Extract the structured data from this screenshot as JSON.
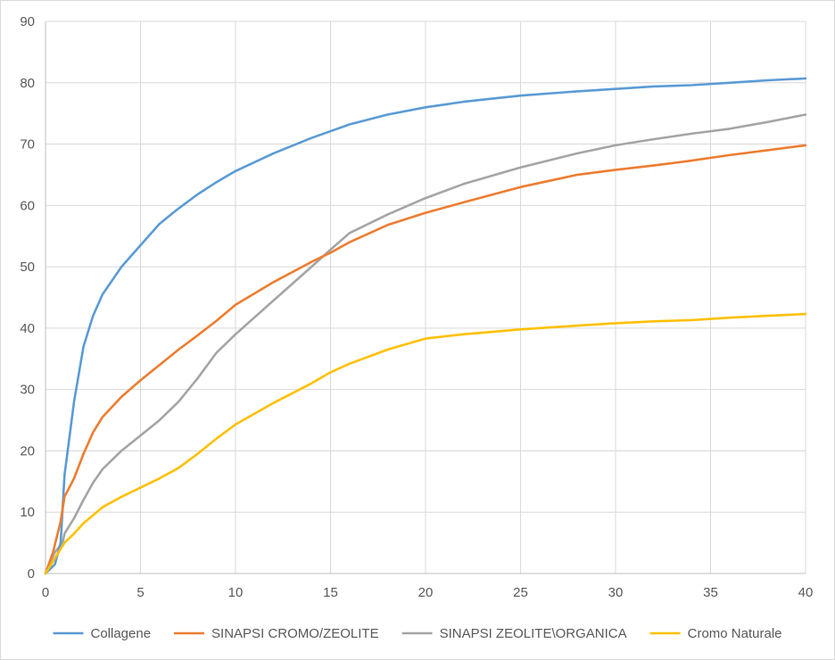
{
  "chart_data": {
    "type": "line",
    "title": "",
    "xlabel": "",
    "ylabel": "",
    "xlim": [
      0,
      40
    ],
    "ylim": [
      0,
      90
    ],
    "x_ticks": [
      0,
      5,
      10,
      15,
      20,
      25,
      30,
      35,
      40
    ],
    "y_ticks": [
      0,
      10,
      20,
      30,
      40,
      50,
      60,
      70,
      80,
      90
    ],
    "grid": true,
    "legend_position": "bottom",
    "series": [
      {
        "name": "Collagene",
        "color": "#5b9bd5",
        "x": [
          0,
          0.5,
          0.8,
          1,
          1.5,
          2,
          2.5,
          3,
          4,
          5,
          6,
          7,
          8,
          9,
          10,
          12,
          14,
          16,
          18,
          20,
          22,
          25,
          28,
          30,
          32,
          34,
          36,
          38,
          40
        ],
        "y": [
          0,
          1.5,
          5,
          16,
          28,
          37,
          42,
          45.5,
          50,
          53.5,
          57,
          59.5,
          61.8,
          63.8,
          65.6,
          68.5,
          71,
          73.2,
          74.8,
          76,
          76.9,
          77.9,
          78.6,
          79,
          79.4,
          79.6,
          80,
          80.4,
          80.7
        ]
      },
      {
        "name": "SINAPSI CROMO/ZEOLITE",
        "color": "#ed7d31",
        "x": [
          0,
          0.4,
          0.8,
          1,
          1.5,
          2,
          2.5,
          3,
          4,
          5,
          6,
          7,
          8,
          9,
          10,
          12,
          14,
          15,
          16,
          18,
          20,
          22,
          25,
          28,
          30,
          32,
          34,
          36,
          38,
          40
        ],
        "y": [
          0,
          3.5,
          8.5,
          12.5,
          15.5,
          19.5,
          23,
          25.5,
          28.8,
          31.5,
          34,
          36.5,
          38.8,
          41.2,
          43.8,
          47.5,
          50.8,
          52.3,
          54,
          56.8,
          58.8,
          60.5,
          63,
          65,
          65.8,
          66.5,
          67.3,
          68.2,
          69,
          69.8
        ]
      },
      {
        "name": "SINAPSI ZEOLITE\\ORGANICA",
        "color": "#a5a5a5",
        "x": [
          0,
          0.5,
          0.9,
          1,
          1.5,
          2,
          2.5,
          3,
          4,
          5,
          6,
          7,
          8,
          9,
          10,
          12,
          14,
          15,
          16,
          18,
          20,
          22,
          25,
          28,
          30,
          32,
          34,
          36,
          38,
          40
        ],
        "y": [
          0,
          3.5,
          5,
          6.5,
          9,
          12,
          14.8,
          17,
          20,
          22.5,
          25,
          28,
          31.8,
          36,
          39,
          44.5,
          50,
          52.8,
          55.5,
          58.5,
          61.2,
          63.5,
          66.2,
          68.5,
          69.8,
          70.8,
          71.7,
          72.5,
          73.6,
          74.8
        ]
      },
      {
        "name": "Cromo Naturale",
        "color": "#ffc000",
        "x": [
          0,
          0.5,
          1,
          1.5,
          2,
          2.5,
          3,
          4,
          5,
          6,
          7,
          8,
          9,
          10,
          12,
          14,
          15,
          16,
          18,
          20,
          22,
          25,
          28,
          30,
          32,
          34,
          36,
          38,
          40
        ],
        "y": [
          0,
          2.5,
          5,
          6.5,
          8.2,
          9.5,
          10.8,
          12.5,
          14,
          15.5,
          17.2,
          19.5,
          22,
          24.3,
          27.8,
          31,
          32.8,
          34.2,
          36.5,
          38.3,
          39,
          39.8,
          40.4,
          40.8,
          41.1,
          41.3,
          41.7,
          42,
          42.3
        ]
      }
    ]
  }
}
